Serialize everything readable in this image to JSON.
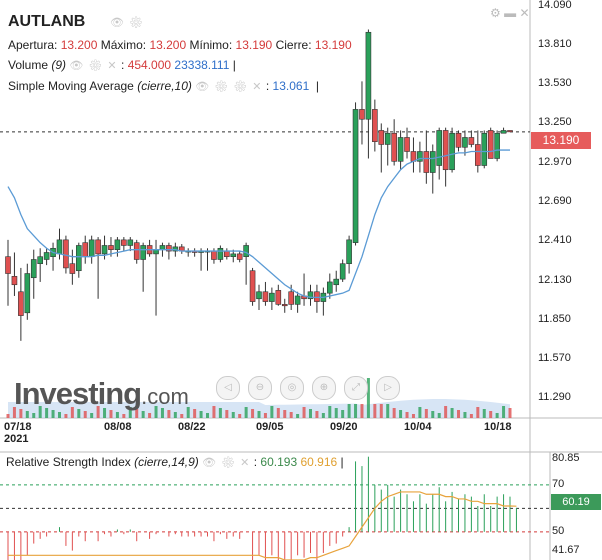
{
  "header": {
    "symbol": "AUTLANB",
    "ohlc": {
      "open_label": "Apertura:",
      "open": "13.200",
      "high_label": "Máximo:",
      "high": "13.200",
      "low_label": "Mínimo:",
      "low": "13.190",
      "close_label": "Cierre:",
      "close": "13.190"
    },
    "volume": {
      "label": "Volume",
      "param": "(9)",
      "value": "454.000",
      "ma_value": "23338.111"
    },
    "sma": {
      "label": "Simple Moving Average",
      "param": "(cierre,10)",
      "value": "13.061"
    },
    "rsi": {
      "label": "Relative Strength Index",
      "param": "(cierre,14,9)",
      "value": "60.193",
      "signal": "60.916"
    }
  },
  "price_badge": "13.190",
  "rsi_badge": "60.19",
  "logo": {
    "text": "Investing",
    "suffix": ".com"
  },
  "colors": {
    "up": "#2aa05a",
    "down": "#e05050",
    "sma": "#5b9bd5",
    "rsi_signal": "#e8a33c",
    "volume_area": "#bcd4ee"
  },
  "chart_data": [
    {
      "type": "candlestick",
      "x_ticks": [
        "07/18\n2021",
        "08/08",
        "08/22",
        "09/05",
        "09/20",
        "10/04",
        "10/18"
      ],
      "y_ticks": [
        "14.090",
        "13.810",
        "13.530",
        "13.250",
        "12.970",
        "12.690",
        "12.410",
        "12.130",
        "11.850",
        "11.570",
        "11.290"
      ],
      "ylim": [
        11.15,
        14.13
      ],
      "current_price": 13.19,
      "candles": [
        {
          "o": 12.3,
          "h": 12.42,
          "l": 11.95,
          "c": 12.18
        },
        {
          "o": 12.16,
          "h": 12.33,
          "l": 12.02,
          "c": 12.1
        },
        {
          "o": 12.05,
          "h": 12.22,
          "l": 11.7,
          "c": 11.88
        },
        {
          "o": 11.9,
          "h": 12.25,
          "l": 11.85,
          "c": 12.18
        },
        {
          "o": 12.15,
          "h": 12.35,
          "l": 12.0,
          "c": 12.28
        },
        {
          "o": 12.25,
          "h": 12.36,
          "l": 12.12,
          "c": 12.3
        },
        {
          "o": 12.28,
          "h": 12.36,
          "l": 12.24,
          "c": 12.33
        },
        {
          "o": 12.3,
          "h": 12.4,
          "l": 12.2,
          "c": 12.36
        },
        {
          "o": 12.32,
          "h": 12.5,
          "l": 12.28,
          "c": 12.42
        },
        {
          "o": 12.42,
          "h": 12.45,
          "l": 12.18,
          "c": 12.22
        },
        {
          "o": 12.25,
          "h": 12.35,
          "l": 12.1,
          "c": 12.18
        },
        {
          "o": 12.2,
          "h": 12.4,
          "l": 12.15,
          "c": 12.38
        },
        {
          "o": 12.4,
          "h": 12.45,
          "l": 12.25,
          "c": 12.3
        },
        {
          "o": 12.3,
          "h": 12.45,
          "l": 12.25,
          "c": 12.42
        },
        {
          "o": 12.42,
          "h": 12.44,
          "l": 12.0,
          "c": 12.32
        },
        {
          "o": 12.32,
          "h": 12.45,
          "l": 12.28,
          "c": 12.38
        },
        {
          "o": 12.38,
          "h": 12.44,
          "l": 12.3,
          "c": 12.35
        },
        {
          "o": 12.35,
          "h": 12.44,
          "l": 12.3,
          "c": 12.42
        },
        {
          "o": 12.42,
          "h": 12.44,
          "l": 12.34,
          "c": 12.38
        },
        {
          "o": 12.38,
          "h": 12.44,
          "l": 12.34,
          "c": 12.42
        },
        {
          "o": 12.4,
          "h": 12.42,
          "l": 12.25,
          "c": 12.28
        },
        {
          "o": 12.28,
          "h": 12.4,
          "l": 12.05,
          "c": 12.38
        },
        {
          "o": 12.38,
          "h": 12.42,
          "l": 12.3,
          "c": 12.32
        },
        {
          "o": 12.32,
          "h": 12.42,
          "l": 11.88,
          "c": 12.35
        },
        {
          "o": 12.35,
          "h": 12.4,
          "l": 12.3,
          "c": 12.38
        },
        {
          "o": 12.38,
          "h": 12.4,
          "l": 12.28,
          "c": 12.34
        },
        {
          "o": 12.34,
          "h": 12.4,
          "l": 12.3,
          "c": 12.37
        },
        {
          "o": 12.37,
          "h": 12.39,
          "l": 12.32,
          "c": 12.34
        },
        {
          "o": 12.34,
          "h": 12.36,
          "l": 12.3,
          "c": 12.34
        },
        {
          "o": 12.34,
          "h": 12.36,
          "l": 12.3,
          "c": 12.33
        },
        {
          "o": 12.33,
          "h": 12.36,
          "l": 12.2,
          "c": 12.34
        },
        {
          "o": 12.34,
          "h": 12.36,
          "l": 12.2,
          "c": 12.34
        },
        {
          "o": 12.34,
          "h": 12.36,
          "l": 12.25,
          "c": 12.28
        },
        {
          "o": 12.28,
          "h": 12.38,
          "l": 12.26,
          "c": 12.36
        },
        {
          "o": 12.34,
          "h": 12.36,
          "l": 12.28,
          "c": 12.3
        },
        {
          "o": 12.3,
          "h": 12.35,
          "l": 12.26,
          "c": 12.32
        },
        {
          "o": 12.32,
          "h": 12.34,
          "l": 12.26,
          "c": 12.28
        },
        {
          "o": 12.3,
          "h": 12.4,
          "l": 12.1,
          "c": 12.38
        },
        {
          "o": 12.2,
          "h": 12.22,
          "l": 11.95,
          "c": 11.98
        },
        {
          "o": 12.0,
          "h": 12.1,
          "l": 11.92,
          "c": 12.05
        },
        {
          "o": 12.05,
          "h": 12.12,
          "l": 11.95,
          "c": 11.98
        },
        {
          "o": 11.98,
          "h": 12.08,
          "l": 11.92,
          "c": 12.04
        },
        {
          "o": 12.06,
          "h": 12.1,
          "l": 11.95,
          "c": 11.96
        },
        {
          "o": 11.96,
          "h": 12.0,
          "l": 11.9,
          "c": 11.95
        },
        {
          "o": 12.05,
          "h": 12.1,
          "l": 11.92,
          "c": 11.96
        },
        {
          "o": 11.96,
          "h": 12.05,
          "l": 11.9,
          "c": 12.02
        },
        {
          "o": 12.02,
          "h": 12.18,
          "l": 11.95,
          "c": 12.0
        },
        {
          "o": 12.0,
          "h": 12.1,
          "l": 11.95,
          "c": 12.05
        },
        {
          "o": 12.05,
          "h": 12.1,
          "l": 11.9,
          "c": 11.98
        },
        {
          "o": 11.98,
          "h": 12.08,
          "l": 11.88,
          "c": 12.04
        },
        {
          "o": 12.04,
          "h": 12.18,
          "l": 12.0,
          "c": 12.12
        },
        {
          "o": 12.1,
          "h": 12.2,
          "l": 12.05,
          "c": 12.14
        },
        {
          "o": 12.14,
          "h": 12.28,
          "l": 12.12,
          "c": 12.25
        },
        {
          "o": 12.25,
          "h": 12.45,
          "l": 12.18,
          "c": 12.42
        },
        {
          "o": 12.4,
          "h": 13.4,
          "l": 12.38,
          "c": 13.35
        },
        {
          "o": 13.35,
          "h": 13.55,
          "l": 13.1,
          "c": 13.28
        },
        {
          "o": 13.28,
          "h": 13.92,
          "l": 13.0,
          "c": 13.9
        },
        {
          "o": 13.35,
          "h": 13.42,
          "l": 13.05,
          "c": 13.12
        },
        {
          "o": 13.2,
          "h": 13.25,
          "l": 12.9,
          "c": 13.1
        },
        {
          "o": 13.1,
          "h": 13.22,
          "l": 12.95,
          "c": 13.18
        },
        {
          "o": 13.18,
          "h": 13.28,
          "l": 12.95,
          "c": 12.98
        },
        {
          "o": 12.98,
          "h": 13.2,
          "l": 12.92,
          "c": 13.15
        },
        {
          "o": 13.15,
          "h": 13.22,
          "l": 13.0,
          "c": 13.05
        },
        {
          "o": 13.05,
          "h": 13.15,
          "l": 12.9,
          "c": 12.98
        },
        {
          "o": 12.98,
          "h": 13.12,
          "l": 12.9,
          "c": 13.05
        },
        {
          "o": 13.05,
          "h": 13.2,
          "l": 12.82,
          "c": 12.9
        },
        {
          "o": 12.9,
          "h": 13.1,
          "l": 12.75,
          "c": 13.05
        },
        {
          "o": 12.95,
          "h": 13.22,
          "l": 12.85,
          "c": 13.2
        },
        {
          "o": 13.2,
          "h": 13.22,
          "l": 12.8,
          "c": 12.92
        },
        {
          "o": 12.92,
          "h": 13.22,
          "l": 12.9,
          "c": 13.18
        },
        {
          "o": 13.18,
          "h": 13.2,
          "l": 13.05,
          "c": 13.08
        },
        {
          "o": 13.08,
          "h": 13.2,
          "l": 13.02,
          "c": 13.15
        },
        {
          "o": 13.15,
          "h": 13.2,
          "l": 13.08,
          "c": 13.1
        },
        {
          "o": 13.1,
          "h": 13.2,
          "l": 12.9,
          "c": 12.95
        },
        {
          "o": 12.95,
          "h": 13.2,
          "l": 12.93,
          "c": 13.18
        },
        {
          "o": 13.2,
          "h": 13.22,
          "l": 13.0,
          "c": 13.0
        },
        {
          "o": 13.0,
          "h": 13.2,
          "l": 12.98,
          "c": 13.18
        },
        {
          "o": 13.18,
          "h": 13.22,
          "l": 13.18,
          "c": 13.2
        },
        {
          "o": 13.2,
          "h": 13.2,
          "l": 13.19,
          "c": 13.19
        }
      ],
      "sma": [
        12.8,
        12.72,
        12.6,
        12.5,
        12.45,
        12.4,
        12.36,
        12.33,
        12.32,
        12.31,
        12.3,
        12.3,
        12.3,
        12.3,
        12.31,
        12.31,
        12.32,
        12.33,
        12.34,
        12.35,
        12.35,
        12.35,
        12.35,
        12.35,
        12.35,
        12.35,
        12.35,
        12.34,
        12.34,
        12.34,
        12.34,
        12.34,
        12.34,
        12.34,
        12.34,
        12.34,
        12.34,
        12.33,
        12.3,
        12.26,
        12.22,
        12.18,
        12.14,
        12.1,
        12.07,
        12.04,
        12.02,
        12.01,
        12.01,
        12.01,
        12.02,
        12.03,
        12.04,
        12.06,
        12.18,
        12.3,
        12.45,
        12.6,
        12.72,
        12.8,
        12.86,
        12.92,
        12.96,
        12.98,
        13.0,
        13.0,
        13.0,
        13.01,
        13.02,
        13.03,
        13.04,
        13.04,
        13.05,
        13.05,
        13.05,
        13.05,
        13.06,
        13.06,
        13.06
      ],
      "volume": [
        0,
        0,
        0,
        0,
        0,
        0,
        0,
        0,
        0,
        0,
        0,
        0,
        0,
        0,
        0,
        0,
        0,
        0,
        0,
        0,
        0,
        0,
        0,
        0,
        0,
        0,
        0,
        0,
        0,
        0,
        0,
        0,
        0,
        0,
        0,
        0,
        0,
        0,
        0,
        0,
        0,
        0,
        0,
        0,
        0,
        0,
        0,
        0,
        0,
        0,
        0,
        0,
        0,
        0,
        0,
        0,
        0,
        0,
        0,
        0,
        0,
        0,
        0,
        0,
        0,
        0,
        0,
        0,
        0,
        0,
        0,
        0,
        0,
        0,
        0,
        0,
        0,
        0,
        454
      ]
    },
    {
      "type": "line",
      "name": "Relative Strength Index",
      "y_ticks": [
        "80.85",
        "70",
        "60",
        "50",
        "41.67"
      ],
      "ylim": [
        38,
        84
      ],
      "levels": [
        70,
        60,
        50
      ],
      "rsi": [
        35,
        38,
        32,
        40,
        45,
        47,
        48,
        50,
        52,
        44,
        42,
        48,
        46,
        50,
        46,
        49,
        48,
        51,
        49,
        51,
        46,
        50,
        47,
        49,
        50,
        48,
        49,
        48,
        48,
        48,
        48,
        48,
        46,
        49,
        47,
        48,
        47,
        50,
        38,
        40,
        38,
        40,
        36,
        36,
        38,
        40,
        39,
        41,
        38,
        41,
        44,
        45,
        48,
        52,
        80,
        78,
        82,
        70,
        68,
        70,
        65,
        68,
        66,
        63,
        66,
        62,
        66,
        69,
        63,
        67,
        64,
        66,
        65,
        61,
        66,
        61,
        65,
        66,
        65,
        60.19
      ],
      "signal": [
        40,
        40,
        40,
        40,
        40,
        40,
        40,
        40,
        40,
        40,
        40,
        40,
        40,
        40,
        40,
        40,
        40,
        40,
        40,
        40,
        40,
        40,
        40,
        40,
        40,
        40,
        40,
        40,
        40,
        40,
        40,
        40,
        40,
        40,
        40,
        40,
        40,
        40,
        40,
        40,
        39,
        39,
        39,
        38,
        38,
        38,
        38,
        39,
        39,
        40,
        41,
        42,
        43,
        44,
        48,
        52,
        56,
        60,
        63,
        65,
        66,
        67,
        67,
        67,
        67,
        66,
        66,
        66,
        65,
        65,
        64,
        64,
        63,
        63,
        62,
        62,
        62,
        61,
        61,
        60.916
      ]
    }
  ]
}
